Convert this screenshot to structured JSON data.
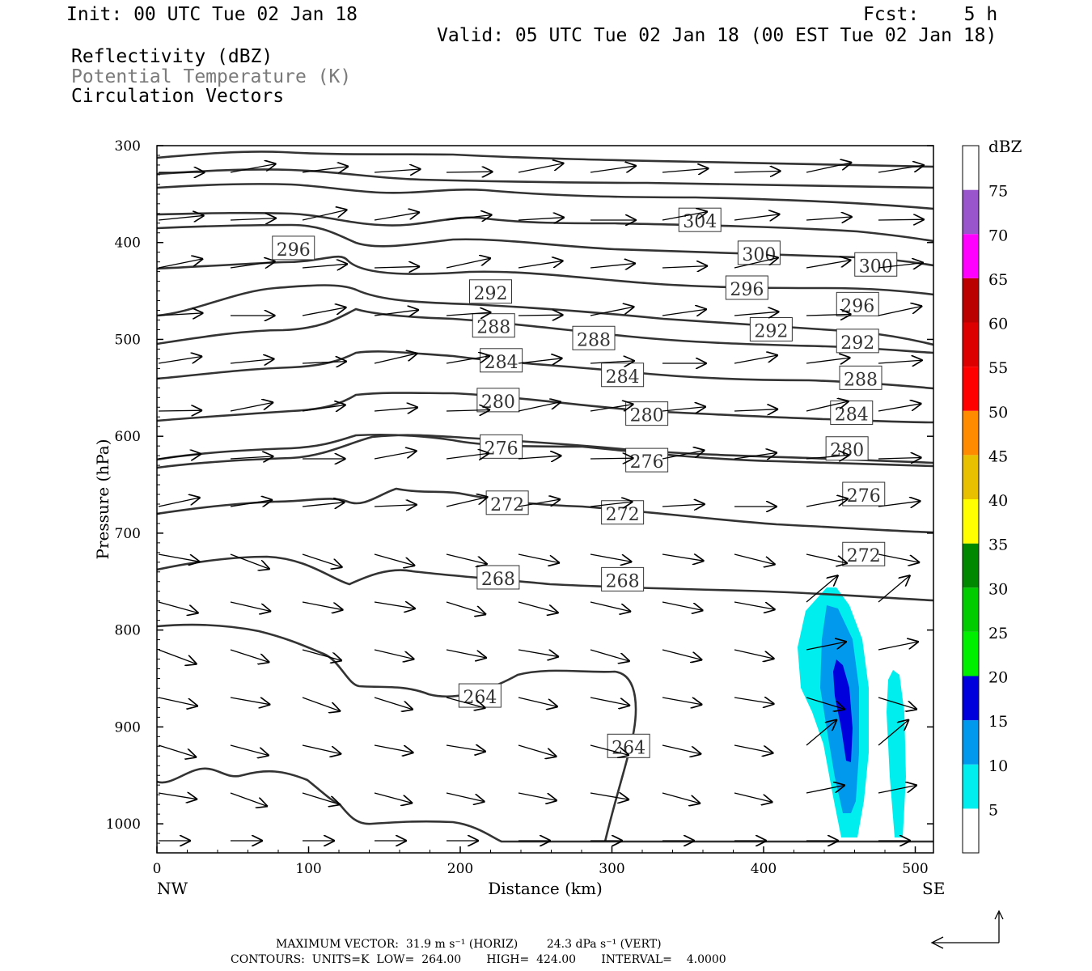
{
  "header": {
    "init": "Init: 00 UTC Tue 02 Jan 18",
    "fcst": "Fcst:    5 h",
    "valid": "Valid: 05 UTC Tue 02 Jan 18 (00 EST Tue 02 Jan 18)",
    "field1": "Reflectivity (dBZ)",
    "field2": "Potential Temperature (K)",
    "field3": "Circulation Vectors"
  },
  "footer": {
    "max_vector": "MAXIMUM VECTOR:  31.9 m s⁻¹ (HORIZ)        24.3 dPa s⁻¹ (VERT)",
    "contours": "CONTOURS:  UNITS=K  LOW=  264.00       HIGH=  424.00       INTERVAL=    4.0000"
  },
  "chart_data": {
    "type": "cross-section",
    "xlabel": "Distance (km)",
    "ylabel": "Pressure (hPa)",
    "xlim": [
      0,
      512
    ],
    "ylim": [
      1030,
      300
    ],
    "x_ticks": [
      0,
      100,
      200,
      300,
      400,
      500
    ],
    "y_ticks": [
      300,
      400,
      500,
      600,
      700,
      800,
      900,
      1000
    ],
    "x_end_labels": {
      "left": "NW",
      "right": "SE"
    },
    "colorbar": {
      "title": "dBZ",
      "levels": [
        5,
        10,
        15,
        20,
        25,
        30,
        35,
        40,
        45,
        50,
        55,
        60,
        65,
        70,
        75
      ],
      "colors": [
        "#ffffff",
        "#00eeee",
        "#0099ee",
        "#0000dd",
        "#00ee00",
        "#00cc00",
        "#008800",
        "#ffff00",
        "#e8c000",
        "#ff8c00",
        "#ff0000",
        "#dd0000",
        "#bb0000",
        "#ff00ff",
        "#9955cc",
        "#ffffff"
      ]
    },
    "theta_labels": [
      {
        "value": "304",
        "x": 358,
        "p": 377
      },
      {
        "value": "296",
        "x": 90,
        "p": 406
      },
      {
        "value": "300",
        "x": 397,
        "p": 411
      },
      {
        "value": "300",
        "x": 474,
        "p": 423
      },
      {
        "value": "292",
        "x": 220,
        "p": 451
      },
      {
        "value": "296",
        "x": 389,
        "p": 447
      },
      {
        "value": "296",
        "x": 462,
        "p": 464
      },
      {
        "value": "288",
        "x": 222,
        "p": 486
      },
      {
        "value": "288",
        "x": 288,
        "p": 499
      },
      {
        "value": "292",
        "x": 405,
        "p": 490
      },
      {
        "value": "292",
        "x": 462,
        "p": 502
      },
      {
        "value": "284",
        "x": 227,
        "p": 522
      },
      {
        "value": "284",
        "x": 307,
        "p": 537
      },
      {
        "value": "288",
        "x": 464,
        "p": 540
      },
      {
        "value": "280",
        "x": 225,
        "p": 563
      },
      {
        "value": "280",
        "x": 323,
        "p": 577
      },
      {
        "value": "284",
        "x": 458,
        "p": 576
      },
      {
        "value": "276",
        "x": 227,
        "p": 611
      },
      {
        "value": "276",
        "x": 323,
        "p": 625
      },
      {
        "value": "280",
        "x": 455,
        "p": 613
      },
      {
        "value": "272",
        "x": 231,
        "p": 669
      },
      {
        "value": "272",
        "x": 307,
        "p": 679
      },
      {
        "value": "276",
        "x": 466,
        "p": 660
      },
      {
        "value": "272",
        "x": 466,
        "p": 722
      },
      {
        "value": "268",
        "x": 225,
        "p": 746
      },
      {
        "value": "268",
        "x": 307,
        "p": 748
      },
      {
        "value": "264",
        "x": 213,
        "p": 868
      },
      {
        "value": "264",
        "x": 311,
        "p": 920
      }
    ]
  }
}
